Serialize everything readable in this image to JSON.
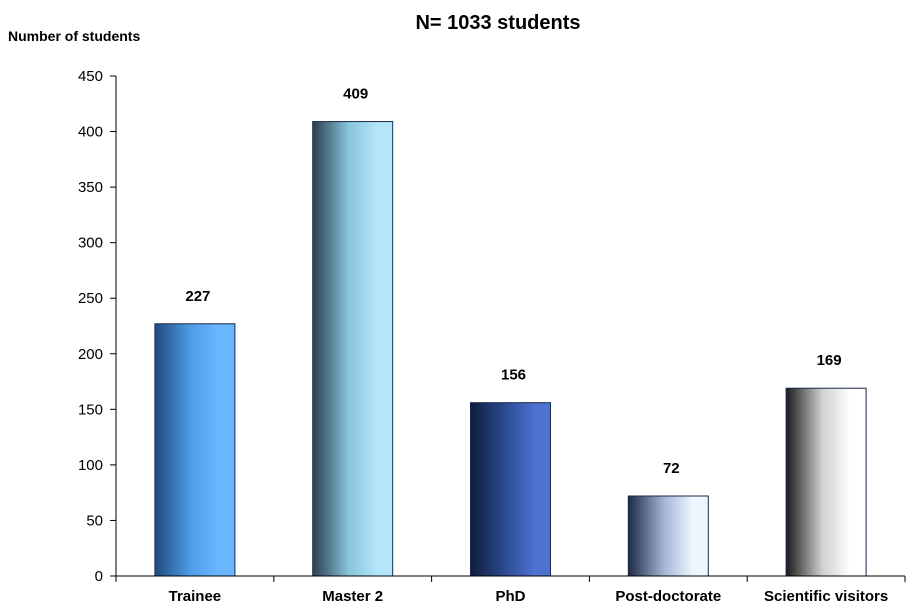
{
  "chart_data": {
    "type": "bar",
    "title": "N= 1033 students",
    "ylabel": "Number of students",
    "xlabel": "",
    "categories": [
      "Trainee",
      "Master 2",
      "PhD",
      "Post-doctorate",
      "Scientific visitors"
    ],
    "values": [
      227,
      409,
      156,
      72,
      169
    ],
    "data_labels": [
      "227",
      "409",
      "156",
      "72",
      "169"
    ],
    "ylim": [
      0,
      450
    ],
    "yticks": [
      0,
      50,
      100,
      150,
      200,
      250,
      300,
      350,
      400,
      450
    ],
    "grid": false,
    "legend": "none",
    "bar_colors": [
      {
        "dark": "#1f4a82",
        "mid": "#4f9de6",
        "light": "#6ab7ff"
      },
      {
        "dark": "#2a3f4e",
        "mid": "#88c4dc",
        "light": "#b3e6f8"
      },
      {
        "dark": "#101d3c",
        "mid": "#2d4c95",
        "light": "#4d72d0"
      },
      {
        "dark": "#1e2a45",
        "mid": "#a4b6d6",
        "light": "#eef5ff"
      },
      {
        "dark": "#1a1a1a",
        "mid": "#cfcfcf",
        "light": "#ffffff"
      }
    ]
  }
}
